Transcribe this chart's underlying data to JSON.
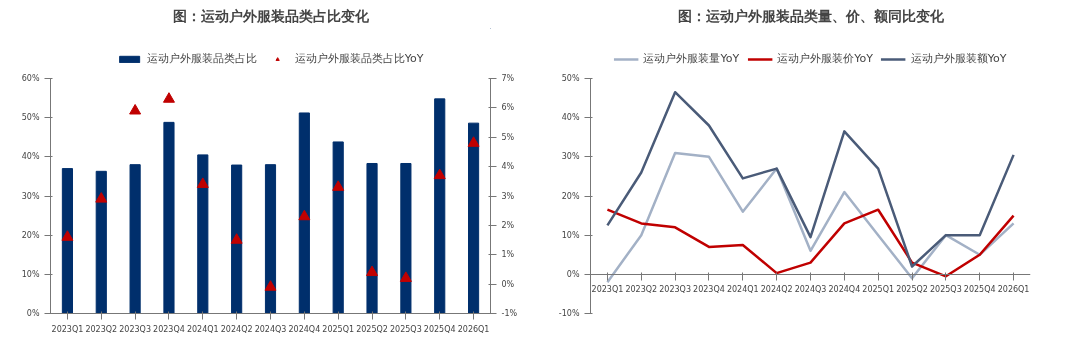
{
  "chart_data": [
    {
      "type": "bar",
      "title": "图：运动户外服装品类占比变化",
      "categories": [
        "2023Q1",
        "2023Q2",
        "2023Q3",
        "2023Q4",
        "2024Q1",
        "2024Q2",
        "2024Q3",
        "2024Q4",
        "2025Q1",
        "2025Q2",
        "2025Q3",
        "2025Q4",
        "2026Q1"
      ],
      "series": [
        {
          "name": "运动户外服装品类占比",
          "color": "#002f6c",
          "values": [
            37,
            36.3,
            38,
            48.8,
            40.5,
            37.9,
            38,
            51.2,
            43.8,
            38.3,
            38.3,
            54.8,
            48.6
          ]
        },
        {
          "name": "运动户外服装品类占比YoY",
          "type": "scatter",
          "axis": "y2",
          "color": "#c00000",
          "values": [
            1.6,
            2.9,
            5.9,
            6.3,
            3.4,
            1.5,
            -0.1,
            2.3,
            3.3,
            0.4,
            0.2,
            3.7,
            4.8
          ]
        }
      ],
      "marker": "triangle",
      "ylim": [
        0,
        60
      ],
      "yticks": [
        {
          "value": 0,
          "label": "0%"
        },
        {
          "value": 10,
          "label": "10%"
        },
        {
          "value": 20,
          "label": "20%"
        },
        {
          "value": 30,
          "label": "30%"
        },
        {
          "value": 40,
          "label": "40%"
        },
        {
          "value": 50,
          "label": "50%"
        },
        {
          "value": 60,
          "label": "60%"
        }
      ],
      "y2lim": [
        -1,
        7
      ],
      "y2ticks": [
        {
          "value": -1,
          "label": "-1%"
        },
        {
          "value": 0,
          "label": "0%"
        },
        {
          "value": 1,
          "label": "1%"
        },
        {
          "value": 2,
          "label": "2%"
        },
        {
          "value": 3,
          "label": "3%"
        },
        {
          "value": 4,
          "label": "4%"
        },
        {
          "value": 5,
          "label": "5%"
        },
        {
          "value": 6,
          "label": "6%"
        },
        {
          "value": 7,
          "label": "7%"
        }
      ],
      "grid": false,
      "legend": "top"
    },
    {
      "type": "line",
      "title": "图：运动户外服装品类量、价、额同比变化",
      "categories": [
        "2023Q1",
        "2023Q2",
        "2023Q3",
        "2023Q4",
        "2024Q1",
        "2024Q2",
        "2024Q3",
        "2024Q4",
        "2025Q1",
        "2025Q2",
        "2025Q3",
        "2025Q4",
        "2026Q1"
      ],
      "series": [
        {
          "name": "运动户外服装量YoY",
          "color": "#a3b1c6",
          "values": [
            -2,
            10,
            31,
            30,
            16,
            27,
            6,
            21,
            10,
            -1,
            10,
            5,
            13
          ]
        },
        {
          "name": "运动户外服装价YoY",
          "color": "#c00000",
          "values": [
            16.5,
            13,
            12,
            7,
            7.5,
            0.3,
            3,
            13,
            16.5,
            3,
            -0.5,
            5,
            15
          ]
        },
        {
          "name": "运动户外服装额YoY",
          "color": "#4a5b78",
          "values": [
            12.5,
            26,
            46.5,
            38,
            24.5,
            27,
            9.5,
            36.5,
            27,
            2,
            10,
            10,
            30.5
          ]
        }
      ],
      "ylim": [
        -10,
        50
      ],
      "yticks": [
        {
          "value": -10,
          "label": "-10%"
        },
        {
          "value": 0,
          "label": "0%"
        },
        {
          "value": 10,
          "label": "10%"
        },
        {
          "value": 20,
          "label": "20%"
        },
        {
          "value": 30,
          "label": "30%"
        },
        {
          "value": 40,
          "label": "40%"
        },
        {
          "value": 50,
          "label": "50%"
        }
      ],
      "grid": false,
      "legend": "top",
      "line_style": "solid"
    }
  ]
}
